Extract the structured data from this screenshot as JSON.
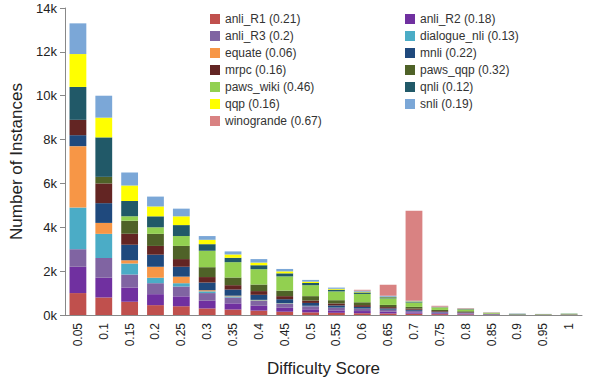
{
  "chart_data": {
    "type": "bar",
    "stacked": true,
    "grid": false,
    "legend": "top-right",
    "x_label": "Difficulty Score",
    "y_label": "Number of Instances",
    "categories": [
      "0.05",
      "0.1",
      "0.15",
      "0.2",
      "0.25",
      "0.3",
      "0.35",
      "0.4",
      "0.45",
      "0.5",
      "0.55",
      "0.6",
      "0.65",
      "0.7",
      "0.75",
      "0.8",
      "0.85",
      "0.9",
      "0.95",
      "1"
    ],
    "ylim": [
      0,
      14000
    ],
    "yticks": [
      {
        "value": 0,
        "label": "0k"
      },
      {
        "value": 2000,
        "label": "2k"
      },
      {
        "value": 4000,
        "label": "4k"
      },
      {
        "value": 6000,
        "label": "6k"
      },
      {
        "value": 8000,
        "label": "8k"
      },
      {
        "value": 10000,
        "label": "10k"
      },
      {
        "value": 12000,
        "label": "12k"
      },
      {
        "value": 14000,
        "label": "14k"
      }
    ],
    "series": [
      {
        "name": "anli_R1 (0.21)",
        "color": "#c0504d",
        "values": [
          1000,
          800,
          600,
          450,
          400,
          300,
          250,
          200,
          150,
          120,
          100,
          80,
          70,
          60,
          40,
          30,
          10,
          5,
          5,
          5
        ]
      },
      {
        "name": "anli_R2 (0.18)",
        "color": "#7030a0",
        "values": [
          1200,
          900,
          650,
          500,
          450,
          350,
          280,
          220,
          180,
          140,
          110,
          100,
          80,
          60,
          40,
          30,
          10,
          5,
          5,
          5
        ]
      },
      {
        "name": "anli_R3 (0.2)",
        "color": "#8064a2",
        "values": [
          800,
          900,
          600,
          500,
          450,
          350,
          270,
          220,
          180,
          140,
          110,
          100,
          80,
          60,
          40,
          30,
          10,
          5,
          5,
          5
        ]
      },
      {
        "name": "dialogue_nli (0.13)",
        "color": "#4bacc6",
        "values": [
          1900,
          1100,
          500,
          250,
          150,
          80,
          50,
          30,
          20,
          10,
          10,
          5,
          5,
          5,
          0,
          0,
          0,
          0,
          0,
          0
        ]
      },
      {
        "name": "equate (0.06)",
        "color": "#f79646",
        "values": [
          2800,
          500,
          150,
          500,
          300,
          50,
          30,
          20,
          10,
          10,
          5,
          5,
          5,
          5,
          0,
          0,
          0,
          0,
          0,
          0
        ]
      },
      {
        "name": "mnli (0.22)",
        "color": "#1f497d",
        "values": [
          500,
          900,
          700,
          550,
          450,
          350,
          280,
          230,
          180,
          130,
          100,
          80,
          60,
          50,
          30,
          20,
          10,
          5,
          5,
          5
        ]
      },
      {
        "name": "mrpc (0.16)",
        "color": "#632523",
        "values": [
          700,
          900,
          500,
          400,
          350,
          250,
          200,
          170,
          140,
          110,
          90,
          80,
          60,
          50,
          30,
          20,
          10,
          5,
          5,
          5
        ]
      },
      {
        "name": "paws_qqp (0.32)",
        "color": "#4f6228",
        "values": [
          0,
          300,
          600,
          550,
          600,
          450,
          350,
          300,
          250,
          200,
          150,
          130,
          100,
          80,
          50,
          40,
          10,
          5,
          5,
          10
        ]
      },
      {
        "name": "paws_wiki (0.46)",
        "color": "#92d050",
        "values": [
          0,
          0,
          200,
          300,
          450,
          750,
          700,
          700,
          650,
          500,
          400,
          380,
          300,
          200,
          100,
          80,
          30,
          20,
          15,
          25
        ]
      },
      {
        "name": "qnli (0.12)",
        "color": "#215968",
        "values": [
          1500,
          1800,
          700,
          500,
          500,
          300,
          200,
          180,
          140,
          100,
          80,
          70,
          50,
          40,
          20,
          20,
          10,
          5,
          0,
          5
        ]
      },
      {
        "name": "qqp (0.16)",
        "color": "#ffff00",
        "values": [
          1500,
          900,
          700,
          450,
          400,
          200,
          150,
          120,
          90,
          60,
          40,
          30,
          20,
          15,
          10,
          10,
          5,
          0,
          0,
          0
        ]
      },
      {
        "name": "snli (0.19)",
        "color": "#7ba7d7",
        "values": [
          1400,
          1000,
          600,
          450,
          350,
          170,
          140,
          160,
          110,
          80,
          55,
          50,
          50,
          25,
          20,
          20,
          5,
          5,
          5,
          5
        ]
      },
      {
        "name": "winogrande (0.67)",
        "color": "#d98282",
        "values": [
          0,
          0,
          0,
          0,
          0,
          0,
          0,
          0,
          0,
          0,
          0,
          40,
          500,
          4100,
          40,
          20,
          10,
          0,
          0,
          0
        ]
      }
    ]
  }
}
